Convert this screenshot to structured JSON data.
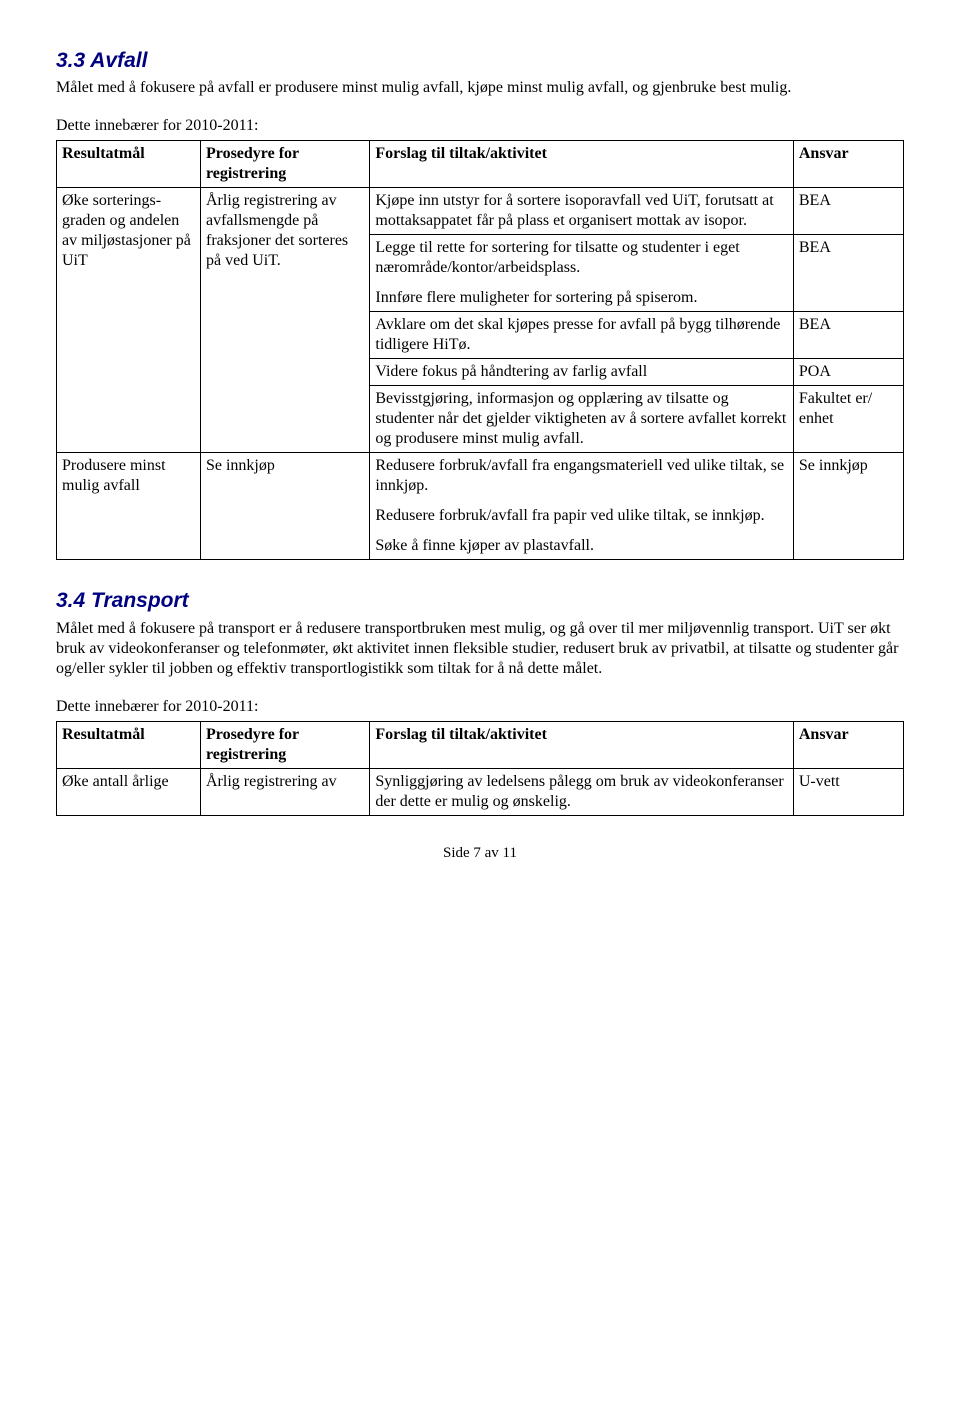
{
  "section33": {
    "heading": "3.3  Avfall",
    "intro": "Målet med å fokusere på avfall er produsere minst mulig avfall, kjøpe minst mulig avfall, og gjenbruke best mulig.",
    "lead": "Dette innebærer for 2010-2011:",
    "table": {
      "headers": {
        "c1": "Resultatmål",
        "c2": "Prosedyre for registrering",
        "c3": "Forslag til tiltak/aktivitet",
        "c4": "Ansvar"
      },
      "rows": [
        {
          "c1": "Øke sorterings-graden og andelen av miljøstasjoner på UiT",
          "c2": "Årlig registrering av avfallsmengde på fraksjoner det sorteres på ved UiT.",
          "c3_rows": [
            {
              "text": "Kjøpe inn utstyr for å sortere isoporavfall ved UiT, forutsatt at mottaksappatet får på plass et organisert mottak av isopor.",
              "ansvar": "BEA"
            },
            {
              "text_a": "Legge til rette for sortering for tilsatte og studenter i eget nærområde/kontor/arbeidsplass.",
              "text_b": "Innføre flere muligheter for sortering på spiserom.",
              "ansvar": "BEA"
            },
            {
              "text": "Avklare om det skal kjøpes presse for avfall på bygg tilhørende tidligere HiTø.",
              "ansvar": "BEA"
            },
            {
              "text": "Videre fokus på håndtering av farlig avfall",
              "ansvar": "POA"
            },
            {
              "text": "Bevisstgjøring, informasjon og opplæring av tilsatte og studenter når det gjelder viktigheten av å sortere avfallet korrekt og produsere minst mulig avfall.",
              "ansvar": "Fakultet er/ enhet"
            }
          ]
        },
        {
          "c1": "Produsere minst mulig avfall",
          "c2": "Se innkjøp",
          "c3_a": "Redusere forbruk/avfall fra engangsmateriell ved ulike tiltak, se innkjøp.",
          "c3_b": "Redusere forbruk/avfall fra papir ved ulike tiltak, se innkjøp.",
          "c3_c": "Søke å finne kjøper av plastavfall.",
          "c4": "Se innkjøp"
        }
      ]
    }
  },
  "section34": {
    "heading": "3.4  Transport",
    "intro": "Målet med å fokusere på transport er å redusere transportbruken mest mulig, og gå over til mer miljøvennlig transport. UiT ser økt bruk av videokonferanser og telefonmøter, økt aktivitet innen fleksible studier, redusert bruk av privatbil, at tilsatte og studenter går og/eller sykler til jobben og effektiv transportlogistikk som tiltak for å nå dette målet.",
    "lead": "Dette innebærer for 2010-2011:",
    "table": {
      "headers": {
        "c1": "Resultatmål",
        "c2": "Prosedyre for registrering",
        "c3": "Forslag til tiltak/aktivitet",
        "c4": "Ansvar"
      },
      "row": {
        "c1": "Øke antall årlige",
        "c2": "Årlig registrering av",
        "c3": "Synliggjøring av ledelsens pålegg om bruk av videokonferanser der dette er mulig og ønskelig.",
        "c4": "U-vett"
      }
    }
  },
  "footer": "Side 7 av 11"
}
